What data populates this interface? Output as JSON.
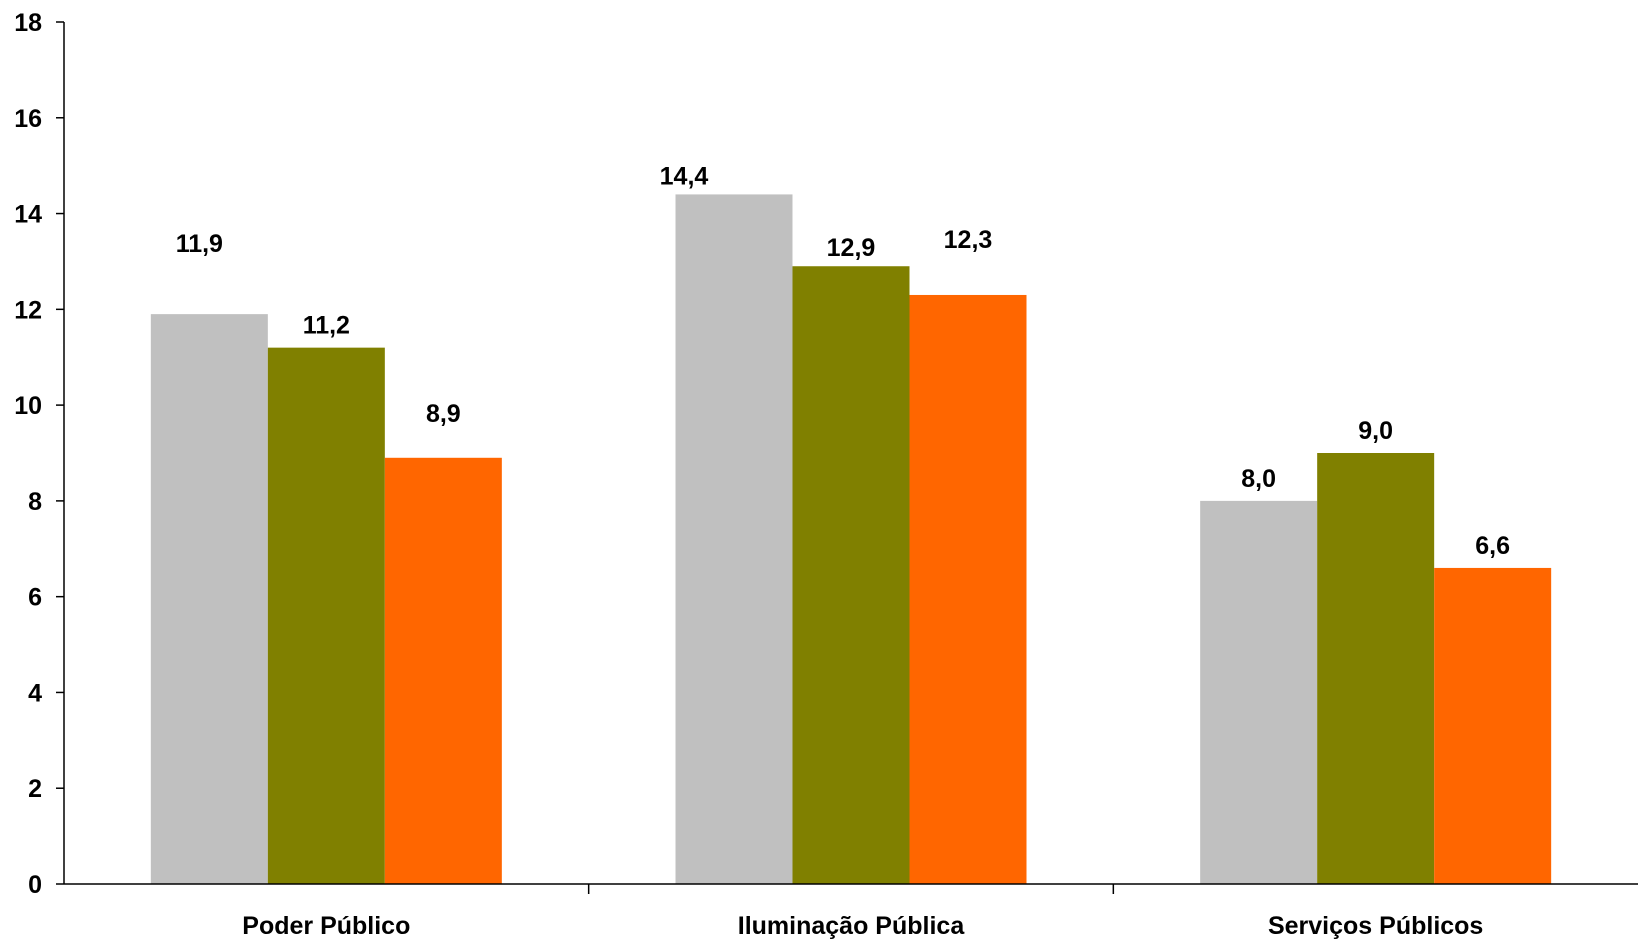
{
  "chart_data": {
    "type": "bar",
    "title": "",
    "xlabel": "",
    "ylabel": "",
    "ylim": [
      0,
      18
    ],
    "yticks": [
      "0",
      "2",
      "4",
      "6",
      "8",
      "10",
      "12",
      "14",
      "16",
      "18"
    ],
    "grid": false,
    "legend": "none",
    "categories": [
      "Poder Público",
      "Iluminação Pública",
      "Serviços Públicos"
    ],
    "series": [
      {
        "color": "#C0C0C0",
        "values": [
          11.9,
          14.4,
          8.0
        ],
        "labels": [
          "11,9",
          "14,4",
          "8,0"
        ]
      },
      {
        "color": "#808000",
        "values": [
          11.2,
          12.9,
          9.0
        ],
        "labels": [
          "11,2",
          "12,9",
          "9,0"
        ]
      },
      {
        "color": "#FF6600",
        "values": [
          8.9,
          12.3,
          6.6
        ],
        "labels": [
          "8,9",
          "12,3",
          "6,6"
        ]
      }
    ]
  }
}
